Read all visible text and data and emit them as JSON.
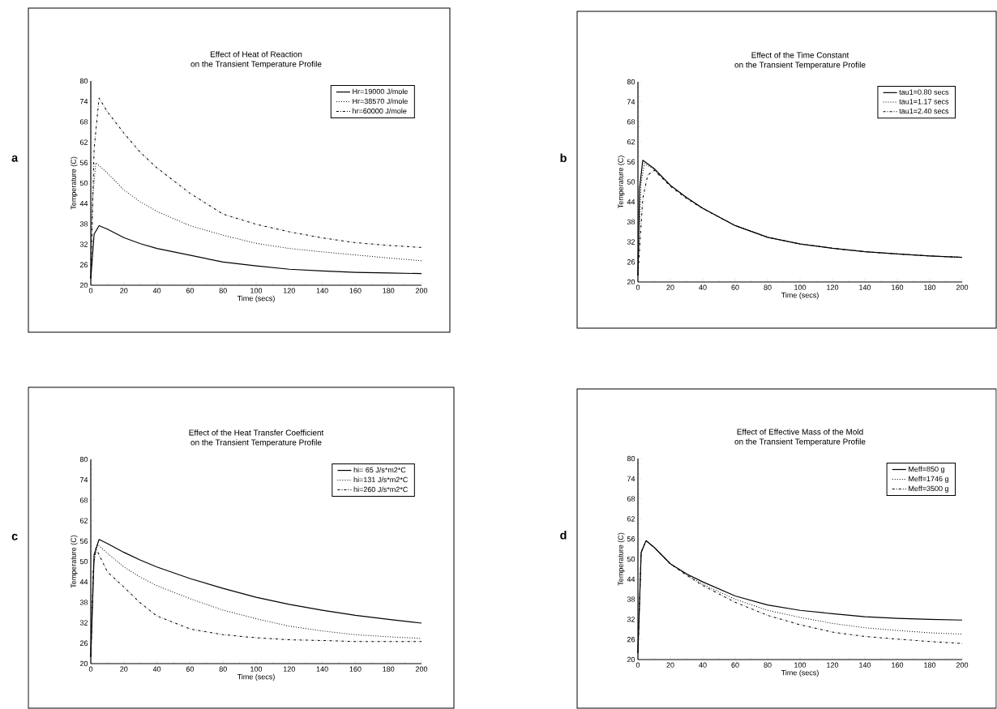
{
  "chart_data": [
    {
      "type": "line",
      "title": "Effect of Heat of Reaction",
      "subtitle": "on the Transient Temperature Profile",
      "xlabel": "Time (secs)",
      "ylabel": "Temperature (C)",
      "annotations": [
        "a"
      ],
      "legend": "top right",
      "xlim": [
        0,
        200
      ],
      "ylim": [
        20,
        80
      ],
      "xticks": [
        0,
        20,
        40,
        60,
        80,
        100,
        120,
        140,
        160,
        180,
        200
      ],
      "yticks": [
        20,
        26,
        32,
        38,
        44,
        50,
        56,
        62,
        68,
        74,
        80
      ],
      "x": [
        0,
        2,
        5,
        10,
        20,
        30,
        40,
        60,
        80,
        100,
        120,
        140,
        160,
        180,
        200
      ],
      "series": [
        {
          "name": "Hr=19000 J/mole",
          "color": "#000000",
          "line_style": "solid",
          "values": [
            22,
            35,
            37.5,
            36.5,
            34,
            32.2,
            30.8,
            28.8,
            26.8,
            25.7,
            24.7,
            24.2,
            23.8,
            23.6,
            23.4
          ]
        },
        {
          "name": "Hr=38570 J/mole",
          "color": "#000000",
          "line_style": "dotted",
          "x": [
            0,
            1,
            3,
            10,
            20,
            30,
            40,
            60,
            80,
            100,
            120,
            140,
            160,
            180,
            200
          ],
          "values": [
            22,
            45,
            56,
            53,
            48,
            44.5,
            41.7,
            37.5,
            34.7,
            32.3,
            30.8,
            29.8,
            28.9,
            28,
            27.2
          ]
        },
        {
          "name": "hr=60000 J/mole",
          "color": "#000000",
          "line_style": "dashdot",
          "values": [
            22,
            60,
            75,
            71,
            64.7,
            59,
            54.5,
            47,
            40.9,
            37.9,
            35.7,
            33.9,
            32.5,
            31.7,
            31.1
          ]
        }
      ]
    },
    {
      "type": "line",
      "title": "Effect of the Time Constant",
      "subtitle": "on the Transient Temperature Profile",
      "xlabel": "Time (secs)",
      "ylabel": "Temperature (C)",
      "annotations": [
        "b"
      ],
      "legend": "top right",
      "xlim": [
        0,
        200
      ],
      "ylim": [
        20,
        80
      ],
      "xticks": [
        0,
        20,
        40,
        60,
        80,
        100,
        120,
        140,
        160,
        180,
        200
      ],
      "yticks": [
        20,
        26,
        32,
        38,
        44,
        50,
        56,
        62,
        68,
        74,
        80
      ],
      "x": [
        0,
        1,
        3,
        10,
        20,
        30,
        40,
        60,
        80,
        100,
        120,
        140,
        160,
        180,
        200
      ],
      "series": [
        {
          "name": "tau1=0.80 secs",
          "color": "#000000",
          "line_style": "solid",
          "values": [
            22,
            48,
            56.5,
            54,
            49,
            45.3,
            42.1,
            36.9,
            33.4,
            31.4,
            30.1,
            29.1,
            28.4,
            27.8,
            27.4
          ]
        },
        {
          "name": "tau1=1.17 secs",
          "color": "#000000",
          "line_style": "dotted",
          "x": [
            0,
            2,
            4,
            10,
            20,
            30,
            40,
            60,
            80,
            100,
            120,
            140,
            160,
            180,
            200
          ],
          "values": [
            22,
            50,
            55.5,
            53.8,
            49,
            45.3,
            42.1,
            36.9,
            33.4,
            31.4,
            30.1,
            29.1,
            28.4,
            27.8,
            27.4
          ]
        },
        {
          "name": "tau1=2.40 secs",
          "color": "#000000",
          "line_style": "dashdot",
          "x": [
            0,
            3,
            6,
            10,
            20,
            30,
            40,
            60,
            80,
            100,
            120,
            140,
            160,
            180,
            200
          ],
          "values": [
            22,
            45,
            52,
            53.5,
            48.7,
            45,
            42,
            36.9,
            33.4,
            31.4,
            30.1,
            29.1,
            28.4,
            27.8,
            27.4
          ]
        }
      ]
    },
    {
      "type": "line",
      "title": "Effect of the Heat Transfer Coefficient",
      "subtitle": "on the Transient Temperature Profile",
      "xlabel": "Time (secs)",
      "ylabel": "Temperature (C)",
      "annotations": [
        "c"
      ],
      "legend": "top right",
      "xlim": [
        0,
        200
      ],
      "ylim": [
        20,
        80
      ],
      "xticks": [
        0,
        20,
        40,
        60,
        80,
        100,
        120,
        140,
        160,
        180,
        200
      ],
      "yticks": [
        20,
        26,
        32,
        38,
        44,
        50,
        56,
        62,
        68,
        74,
        80
      ],
      "x": [
        0,
        2,
        5,
        10,
        20,
        30,
        40,
        60,
        80,
        100,
        120,
        140,
        160,
        180,
        200
      ],
      "series": [
        {
          "name": "hi= 65 J/s*m2*C",
          "color": "#000000",
          "line_style": "solid",
          "values": [
            22,
            52,
            56.5,
            55.3,
            52.7,
            50.4,
            48.4,
            45,
            42.1,
            39.5,
            37.4,
            35.7,
            34.2,
            33,
            31.9
          ]
        },
        {
          "name": "hi=131 J/s*m2*C",
          "color": "#000000",
          "line_style": "dotted",
          "x": [
            0,
            2,
            4,
            10,
            20,
            30,
            40,
            60,
            80,
            100,
            120,
            140,
            160,
            180,
            200
          ],
          "values": [
            22,
            50,
            55,
            52.5,
            48.4,
            45.4,
            42.9,
            39.1,
            35.7,
            33.2,
            31,
            29.6,
            28.5,
            27.9,
            27.4
          ]
        },
        {
          "name": "hi=260 J/s*m2*C",
          "color": "#000000",
          "line_style": "dashdot",
          "x": [
            0,
            1.5,
            3,
            10,
            20,
            30,
            40,
            60,
            80,
            100,
            120,
            140,
            160,
            180,
            200
          ],
          "values": [
            22,
            48,
            54,
            47,
            42.5,
            37.8,
            34,
            30.2,
            28.5,
            27.6,
            27,
            26.8,
            26.5,
            26.5,
            26.5
          ]
        }
      ]
    },
    {
      "type": "line",
      "title": "Effect of Effective Mass of the Mold",
      "subtitle": "on the Transient Temperature Profile",
      "xlabel": "Time (secs)",
      "ylabel": "Temperature (C)",
      "annotations": [
        "d"
      ],
      "legend": "top right",
      "xlim": [
        0,
        200
      ],
      "ylim": [
        20,
        80
      ],
      "xticks": [
        0,
        20,
        40,
        60,
        80,
        100,
        120,
        140,
        160,
        180,
        200
      ],
      "yticks": [
        20,
        26,
        32,
        38,
        44,
        50,
        56,
        62,
        68,
        74,
        80
      ],
      "x": [
        0,
        2,
        5,
        10,
        20,
        30,
        40,
        60,
        80,
        100,
        120,
        140,
        160,
        180,
        200
      ],
      "series": [
        {
          "name": "Meff=850  g",
          "color": "#000000",
          "line_style": "solid",
          "values": [
            22,
            52,
            55.5,
            53.5,
            48.6,
            45.6,
            43.2,
            39,
            36.3,
            34.7,
            33.7,
            32.8,
            32.3,
            32,
            31.8
          ]
        },
        {
          "name": "Meff=1746 g",
          "color": "#000000",
          "line_style": "dotted",
          "values": [
            22,
            52,
            55.5,
            53.5,
            48.6,
            45.4,
            42.5,
            38,
            34.7,
            32.6,
            30.8,
            29.5,
            28.7,
            28,
            27.6
          ]
        },
        {
          "name": "Meff=3500 g",
          "color": "#000000",
          "line_style": "dashdot",
          "values": [
            22,
            52,
            55.5,
            53.5,
            48.5,
            45.2,
            42.1,
            37.1,
            33.2,
            30.4,
            28.2,
            26.9,
            26.1,
            25.4,
            24.8
          ]
        }
      ]
    }
  ]
}
